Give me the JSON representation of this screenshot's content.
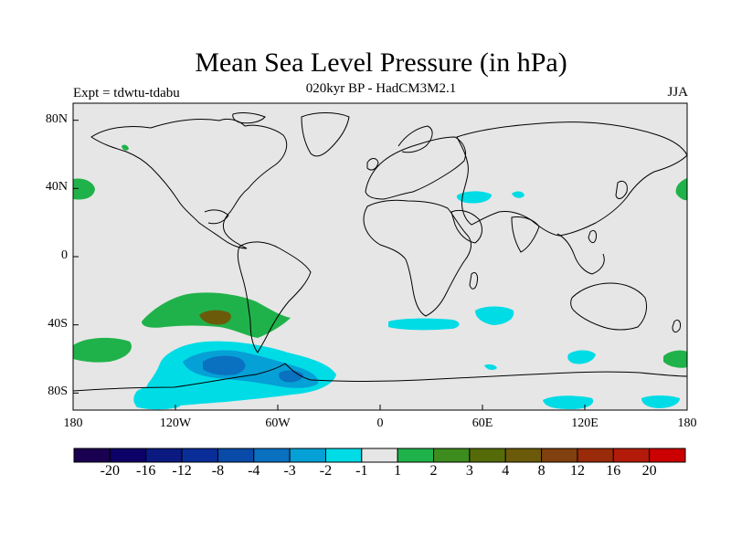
{
  "header": {
    "title": "Mean Sea Level Pressure (in hPa)",
    "left_label": "Expt = tdwtu-tdabu",
    "center_label": "020kyr BP - HadCM3M2.1",
    "right_label": "JJA"
  },
  "map": {
    "projection": "cylindrical-equidistant",
    "background_color": "#e6e6e6",
    "coastline_color": "#000000",
    "x_ticks": [
      "180",
      "120W",
      "60W",
      "0",
      "60E",
      "120E",
      "180"
    ],
    "y_ticks": [
      "80N",
      "40N",
      "0",
      "40S",
      "80S"
    ]
  },
  "colorbar": {
    "colors": [
      "#1a0050",
      "#0d0066",
      "#0a1a80",
      "#0a2e99",
      "#0a4aa8",
      "#0a70c0",
      "#05a0d6",
      "#00dce6",
      "#e6e6e6",
      "#20b24a",
      "#3d8c1e",
      "#556b0a",
      "#6b5a0a",
      "#804010",
      "#992a0a",
      "#b31a0a",
      "#cc0000"
    ],
    "labels": [
      "-20",
      "-16",
      "-12",
      "-8",
      "-4",
      "-3",
      "-2",
      "-1",
      "1",
      "2",
      "3",
      "4",
      "8",
      "12",
      "16",
      "20"
    ]
  },
  "anomalies": [
    {
      "level": "2",
      "color": "#20b24a"
    },
    {
      "level": "3",
      "color": "#3d8c1e"
    },
    {
      "level": "4",
      "color": "#6b5a0a"
    },
    {
      "level": "-1",
      "color": "#00dce6"
    },
    {
      "level": "-2",
      "color": "#05a0d6"
    },
    {
      "level": "-3",
      "color": "#0a70c0"
    }
  ]
}
